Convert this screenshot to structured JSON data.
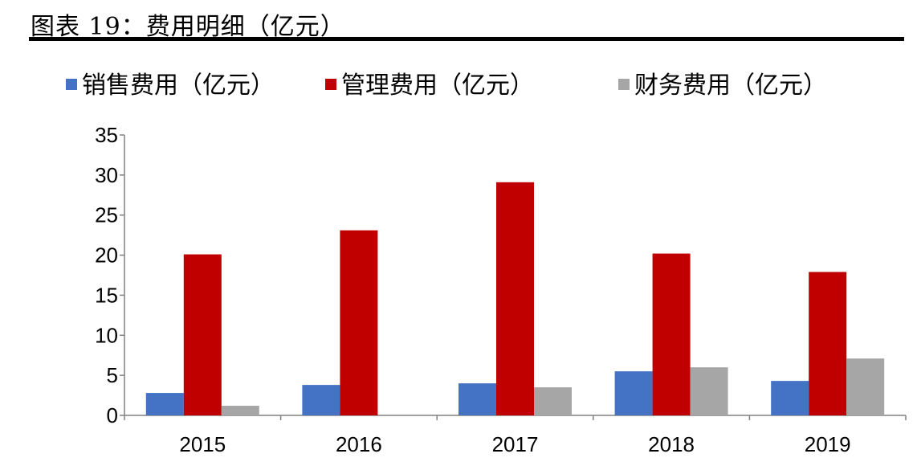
{
  "figure_title": "图表 19：费用明细（亿元）",
  "colors": {
    "sales": "#4472C4",
    "admin": "#C00000",
    "finance": "#A6A6A6",
    "axis": "#808080"
  },
  "chart_data": {
    "type": "bar",
    "title": "",
    "xlabel": "",
    "ylabel": "",
    "categories": [
      "2015",
      "2016",
      "2017",
      "2018",
      "2019"
    ],
    "series": [
      {
        "name": "销售费用（亿元）",
        "values": [
          2.8,
          3.8,
          4.0,
          5.5,
          4.3
        ]
      },
      {
        "name": "管理费用（亿元）",
        "values": [
          20.1,
          23.1,
          29.1,
          20.2,
          17.9
        ]
      },
      {
        "name": "财务费用（亿元）",
        "values": [
          1.2,
          0.0,
          3.5,
          6.0,
          7.1
        ]
      }
    ],
    "ylim": [
      0,
      35
    ],
    "yticks": [
      "0",
      "5",
      "10",
      "15",
      "20",
      "25",
      "30",
      "35"
    ],
    "grid": false,
    "legend_position": "top"
  }
}
